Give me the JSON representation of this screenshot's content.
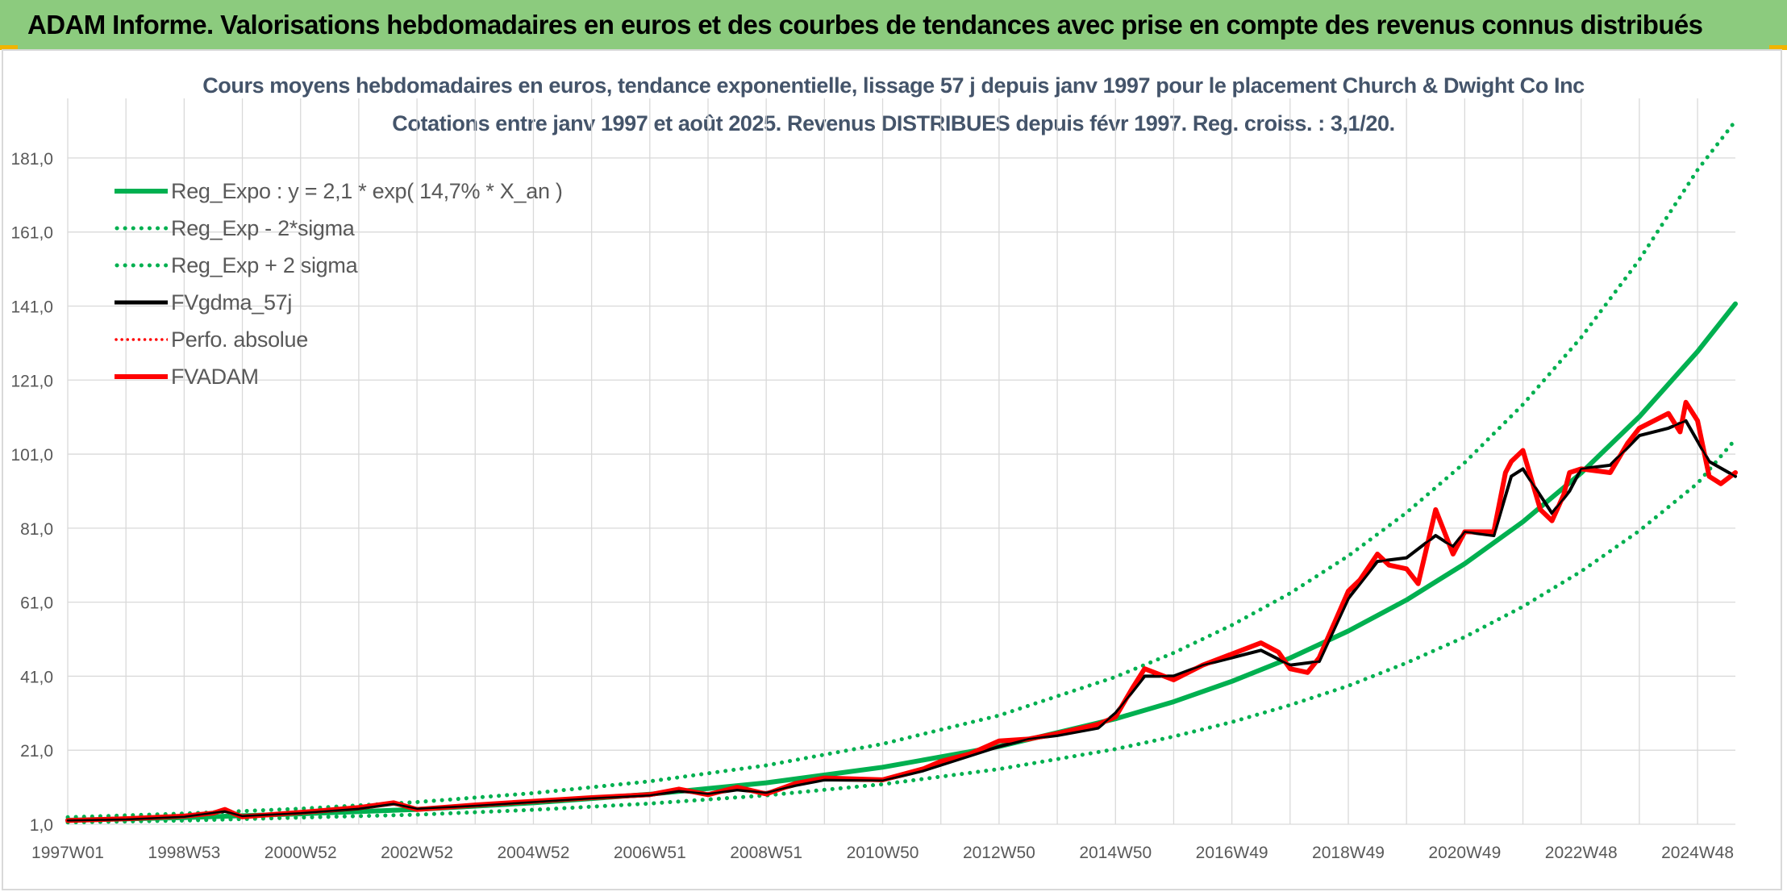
{
  "banner": {
    "title": "ADAM Informe. Valorisations hebdomadaires en euros et des courbes de tendances avec prise en compte des revenus connus distribués"
  },
  "colors": {
    "banner_bg": "#8ccb7e",
    "regression": "#00b050",
    "trend_black": "#000000",
    "fvadam_red": "#ff0000",
    "grid": "#d9d9d9",
    "title_text": "#44546a"
  },
  "chart_data": {
    "type": "line",
    "title": "Cours moyens hebdomadaires en euros, tendance exponentielle, lissage 57 j depuis janv 1997 pour le placement Church & Dwight Co Inc",
    "subtitle": "Cotations entre janv 1997 et août 2025. Revenus DISTRIBUES depuis févr 1997. Reg. croiss. : 3,1/20.",
    "xlabel": "",
    "ylabel": "",
    "x_range_years": [
      1997.0,
      2025.65
    ],
    "ylim": [
      1.0,
      191.0
    ],
    "y_ticks": [
      "1,0",
      "21,0",
      "41,0",
      "61,0",
      "81,0",
      "101,0",
      "121,0",
      "141,0",
      "161,0",
      "181,0"
    ],
    "x_tick_labels": [
      "1997W01",
      "1998W53",
      "2000W52",
      "2002W52",
      "2004W52",
      "2006W51",
      "2008W51",
      "2010W50",
      "2012W50",
      "2014W50",
      "2016W49",
      "2018W49",
      "2020W49",
      "2022W48",
      "2024W48"
    ],
    "grid": true,
    "legend_position": "top-left",
    "series": [
      {
        "name": "Reg_Expo : y = 2,1 * exp( 14,7% *  X_an )",
        "style": "solid-thick",
        "color": "#00b050",
        "x": [
          1997.0,
          1999.0,
          2001.0,
          2003.0,
          2005.0,
          2007.0,
          2009.0,
          2011.0,
          2013.0,
          2015.0,
          2016.0,
          2017.0,
          2018.0,
          2019.0,
          2020.0,
          2021.0,
          2022.0,
          2023.0,
          2024.0,
          2025.0,
          2025.65
        ],
        "y": [
          2.1,
          2.8,
          3.8,
          5.0,
          6.8,
          9.1,
          12.2,
          16.4,
          22.0,
          29.5,
          34.1,
          39.6,
          45.9,
          53.2,
          61.6,
          71.4,
          82.7,
          95.9,
          111.1,
          128.7,
          141.6
        ]
      },
      {
        "name": "Reg_Exp - 2*sigma",
        "style": "dotted",
        "color": "#00b050",
        "x": [
          1997.0,
          1999.0,
          2001.0,
          2003.0,
          2005.0,
          2007.0,
          2009.0,
          2011.0,
          2013.0,
          2015.0,
          2016.0,
          2017.0,
          2018.0,
          2019.0,
          2020.0,
          2021.0,
          2022.0,
          2023.0,
          2024.0,
          2025.0,
          2025.65
        ],
        "y": [
          1.5,
          2.0,
          2.8,
          3.6,
          4.9,
          6.6,
          8.8,
          11.8,
          15.9,
          21.3,
          24.7,
          28.6,
          33.2,
          38.4,
          44.6,
          51.6,
          59.8,
          69.3,
          80.3,
          93.1,
          105.0
        ]
      },
      {
        "name": "Reg_Exp + 2 sigma",
        "style": "dotted",
        "color": "#00b050",
        "x": [
          1997.0,
          1999.0,
          2001.0,
          2003.0,
          2005.0,
          2007.0,
          2009.0,
          2011.0,
          2013.0,
          2015.0,
          2016.0,
          2017.0,
          2018.0,
          2019.0,
          2020.0,
          2021.0,
          2022.0,
          2023.0,
          2024.0,
          2025.0,
          2025.65
        ],
        "y": [
          2.9,
          3.9,
          5.2,
          7.0,
          9.4,
          12.6,
          16.9,
          22.7,
          30.4,
          40.8,
          47.3,
          54.8,
          63.4,
          73.5,
          85.2,
          98.7,
          114.4,
          132.5,
          153.5,
          177.8,
          191.0
        ]
      },
      {
        "name": "FVgdma_57j",
        "style": "solid",
        "color": "#000000",
        "x": [
          1997.0,
          1998.0,
          1999.0,
          1999.7,
          2000.0,
          2001.0,
          2002.0,
          2002.6,
          2003.0,
          2004.0,
          2005.0,
          2006.0,
          2007.0,
          2007.5,
          2008.0,
          2008.5,
          2009.0,
          2009.5,
          2010.0,
          2011.0,
          2011.7,
          2012.0,
          2012.5,
          2013.0,
          2013.5,
          2014.0,
          2014.7,
          2015.0,
          2015.5,
          2016.0,
          2016.5,
          2017.0,
          2017.5,
          2018.0,
          2018.5,
          2019.0,
          2019.5,
          2020.0,
          2020.5,
          2020.8,
          2021.0,
          2021.5,
          2021.8,
          2022.0,
          2022.5,
          2022.8,
          2023.0,
          2023.5,
          2024.0,
          2024.5,
          2024.8,
          2025.2,
          2025.65
        ],
        "y": [
          2.0,
          2.3,
          3.0,
          4.5,
          3.2,
          4.0,
          5.2,
          6.5,
          5.2,
          6.0,
          7.0,
          8.0,
          8.8,
          10.0,
          9.2,
          10.3,
          9.5,
          11.5,
          13.0,
          12.8,
          15.5,
          17.0,
          19.5,
          22.0,
          24.0,
          25.0,
          27.0,
          31.0,
          41.0,
          41.0,
          44.0,
          46.0,
          48.0,
          44.0,
          45.0,
          62.0,
          72.0,
          73.0,
          79.0,
          76.0,
          80.0,
          79.0,
          95.0,
          97.0,
          85.0,
          91.0,
          97.0,
          98.0,
          106.0,
          108.0,
          110.0,
          99.0,
          95.0
        ]
      },
      {
        "name": "Perfo. absolue",
        "style": "dotted",
        "color": "#ff0000",
        "x": [],
        "y": []
      },
      {
        "name": "FVADAM",
        "style": "solid-thick",
        "color": "#ff0000",
        "x": [
          1997.0,
          1998.0,
          1999.0,
          1999.5,
          1999.7,
          1999.9,
          2000.0,
          2001.0,
          2002.0,
          2002.6,
          2003.0,
          2004.0,
          2005.0,
          2006.0,
          2007.0,
          2007.5,
          2008.0,
          2008.5,
          2009.0,
          2009.5,
          2010.0,
          2011.0,
          2011.7,
          2012.0,
          2012.5,
          2013.0,
          2013.5,
          2014.0,
          2014.7,
          2015.0,
          2015.3,
          2015.5,
          2016.0,
          2016.5,
          2017.0,
          2017.5,
          2017.8,
          2018.0,
          2018.3,
          2018.5,
          2019.0,
          2019.2,
          2019.5,
          2019.7,
          2020.0,
          2020.2,
          2020.5,
          2020.8,
          2021.0,
          2021.5,
          2021.7,
          2021.8,
          2022.0,
          2022.3,
          2022.5,
          2022.7,
          2022.8,
          2023.0,
          2023.5,
          2023.8,
          2024.0,
          2024.5,
          2024.7,
          2024.8,
          2025.0,
          2025.2,
          2025.4,
          2025.65
        ],
        "y": [
          2.0,
          2.5,
          3.2,
          4.0,
          5.0,
          3.6,
          3.0,
          4.2,
          5.5,
          6.8,
          5.0,
          6.2,
          7.2,
          8.2,
          9.0,
          10.5,
          9.0,
          11.0,
          9.2,
          12.0,
          13.5,
          13.0,
          16.0,
          18.0,
          20.0,
          23.5,
          24.0,
          25.5,
          28.0,
          30.0,
          38.0,
          43.0,
          40.0,
          44.0,
          47.0,
          50.0,
          47.5,
          43.0,
          42.0,
          46.0,
          64.0,
          67.0,
          74.0,
          71.0,
          70.0,
          66.0,
          86.0,
          74.0,
          80.0,
          80.0,
          96.0,
          99.0,
          102.0,
          86.0,
          83.0,
          90.0,
          96.0,
          97.0,
          96.0,
          104.0,
          108.0,
          112.0,
          107.0,
          115.0,
          110.0,
          95.0,
          93.0,
          96.0
        ]
      }
    ]
  }
}
